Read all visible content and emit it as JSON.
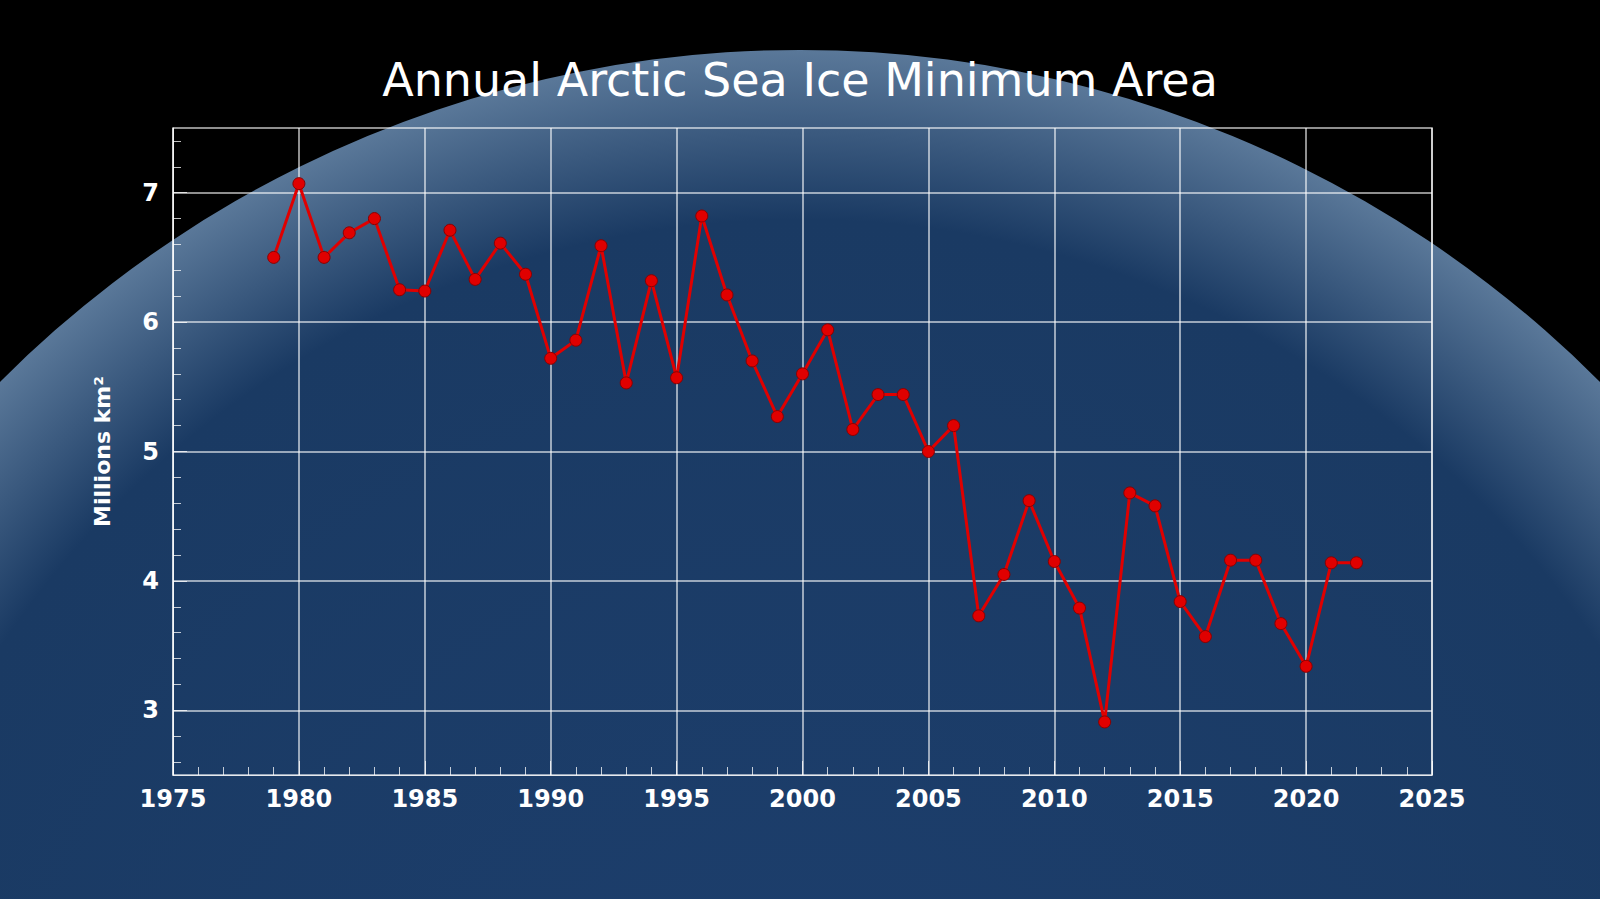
{
  "chart_data": {
    "type": "line",
    "title": "Annual Arctic Sea Ice Minimum Area",
    "y_label": "Millions km²",
    "x": [
      1979,
      1980,
      1981,
      1982,
      1983,
      1984,
      1985,
      1986,
      1987,
      1988,
      1989,
      1990,
      1991,
      1992,
      1993,
      1994,
      1995,
      1996,
      1997,
      1998,
      1999,
      2000,
      2001,
      2002,
      2003,
      2004,
      2005,
      2006,
      2007,
      2008,
      2009,
      2010,
      2011,
      2012,
      2013,
      2014,
      2015,
      2016,
      2017,
      2018,
      2019,
      2020,
      2021,
      2022
    ],
    "values": [
      6.5,
      7.07,
      6.5,
      6.69,
      6.8,
      6.25,
      6.24,
      6.71,
      6.33,
      6.61,
      6.37,
      5.72,
      5.86,
      6.59,
      5.53,
      6.32,
      5.57,
      6.82,
      6.21,
      5.7,
      5.27,
      5.6,
      5.94,
      5.17,
      5.44,
      5.44,
      5.0,
      5.2,
      3.73,
      4.05,
      4.62,
      4.15,
      3.79,
      2.91,
      4.68,
      4.58,
      3.84,
      3.57,
      4.16,
      4.16,
      3.67,
      3.34,
      4.14,
      4.14
    ],
    "color": "#e00000",
    "marker": "circle",
    "xlim": [
      1975,
      2025
    ],
    "xticks": [
      1975,
      1980,
      1985,
      1990,
      1995,
      2000,
      2005,
      2010,
      2015,
      2020,
      2025
    ],
    "ylim": [
      2.5,
      7.5
    ],
    "yticks": [
      3,
      4,
      5,
      6,
      7
    ],
    "grid": true
  }
}
